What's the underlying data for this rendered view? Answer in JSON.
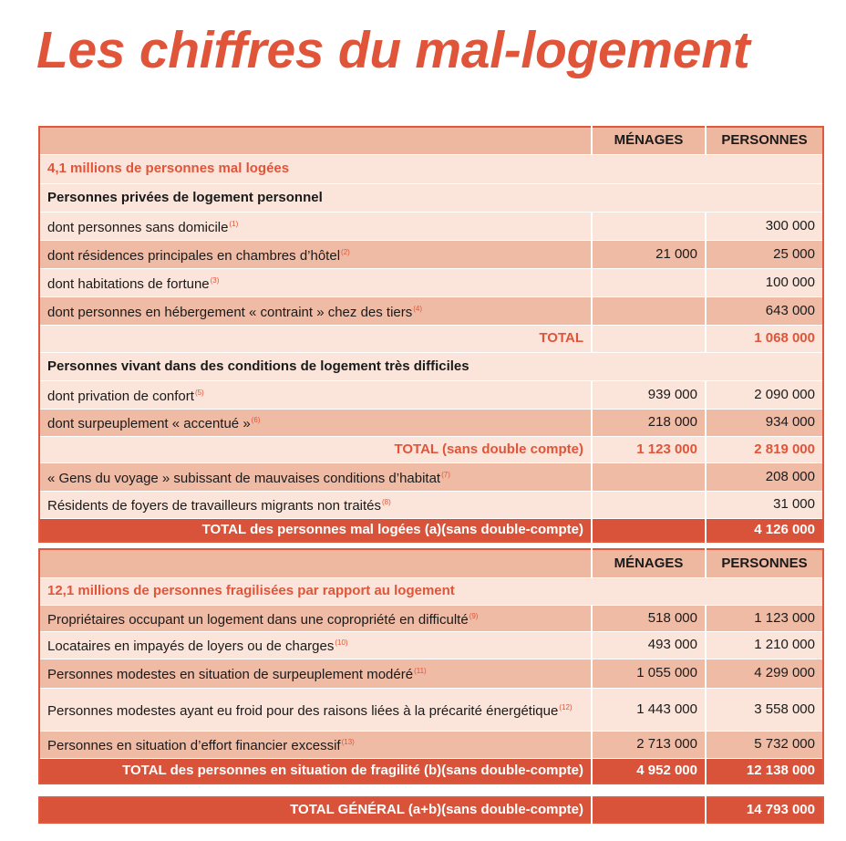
{
  "title": "Les chiffres du mal-logement",
  "table1": {
    "header": [
      "MÉNAGES",
      "PERSONNES"
    ],
    "rows": [
      {
        "label": "4,1 millions de personnes mal logées"
      },
      {
        "label": "Personnes privées de logement personnel"
      },
      {
        "label": "dont personnes sans domicile",
        "note": "(1)",
        "personnes": "300 000"
      },
      {
        "label": "dont résidences principales en chambres d’hôtel",
        "note": "(2)",
        "menages": "21 000",
        "personnes": "25 000"
      },
      {
        "label": "dont habitations de fortune",
        "note": "(3)",
        "personnes": "100 000"
      },
      {
        "label": "dont personnes en hébergement « contraint » chez des tiers",
        "note": "(4)",
        "personnes": "643 000"
      },
      {
        "label": "TOTAL",
        "personnes": "1 068 000"
      },
      {
        "label": "Personnes vivant dans des conditions de logement très difficiles"
      },
      {
        "label": "dont privation de confort",
        "note": "(5)",
        "menages": "939 000",
        "personnes": "2 090 000"
      },
      {
        "label": "dont surpeuplement « accentué »",
        "note": "(6)",
        "menages": "218 000",
        "personnes": "934 000"
      },
      {
        "label": "TOTAL (sans double compte)",
        "menages": "1 123 000",
        "personnes": "2 819 000"
      },
      {
        "label": "« Gens du voyage » subissant de mauvaises conditions d’habitat",
        "note": "(7)",
        "personnes": "208 000"
      },
      {
        "label": "Résidents de foyers de travailleurs migrants non traités",
        "note": "(8)",
        "personnes": "31 000"
      },
      {
        "label": "TOTAL des personnes mal logées (a)(sans double-compte)",
        "personnes": "4 126 000"
      }
    ]
  },
  "table2": {
    "header": [
      "MÉNAGES",
      "PERSONNES"
    ],
    "rows": [
      {
        "label": "12,1 millions de personnes fragilisées par rapport au logement"
      },
      {
        "label": "Propriétaires occupant un logement dans une copropriété en difficulté",
        "note": "(9)",
        "menages": "518 000",
        "personnes": "1 123 000"
      },
      {
        "label": "Locataires en impayés de loyers ou de charges",
        "note": "(10)",
        "menages": "493 000",
        "personnes": "1 210 000"
      },
      {
        "label": "Personnes modestes en situation de surpeuplement modéré",
        "note": "(11)",
        "menages": "1 055 000",
        "personnes": "4 299 000"
      },
      {
        "label": "Personnes modestes ayant eu froid pour des raisons liées à la précarité énergé­tique",
        "note": "(12)",
        "menages": "1 443 000",
        "personnes": "3 558 000"
      },
      {
        "label": "Personnes en situation d’effort financier excessif",
        "note": "(13)",
        "menages": "2 713 000",
        "personnes": "5 732 000"
      },
      {
        "label": "TOTAL des personnes en situation de fragilité (b)(sans double-compte)",
        "menages": "4 952 000",
        "personnes": "12 138 000"
      }
    ]
  },
  "grand_total": {
    "label": "TOTAL GÉNÉRAL (a+b)(sans double-compte)",
    "personnes": "14 793 000"
  }
}
